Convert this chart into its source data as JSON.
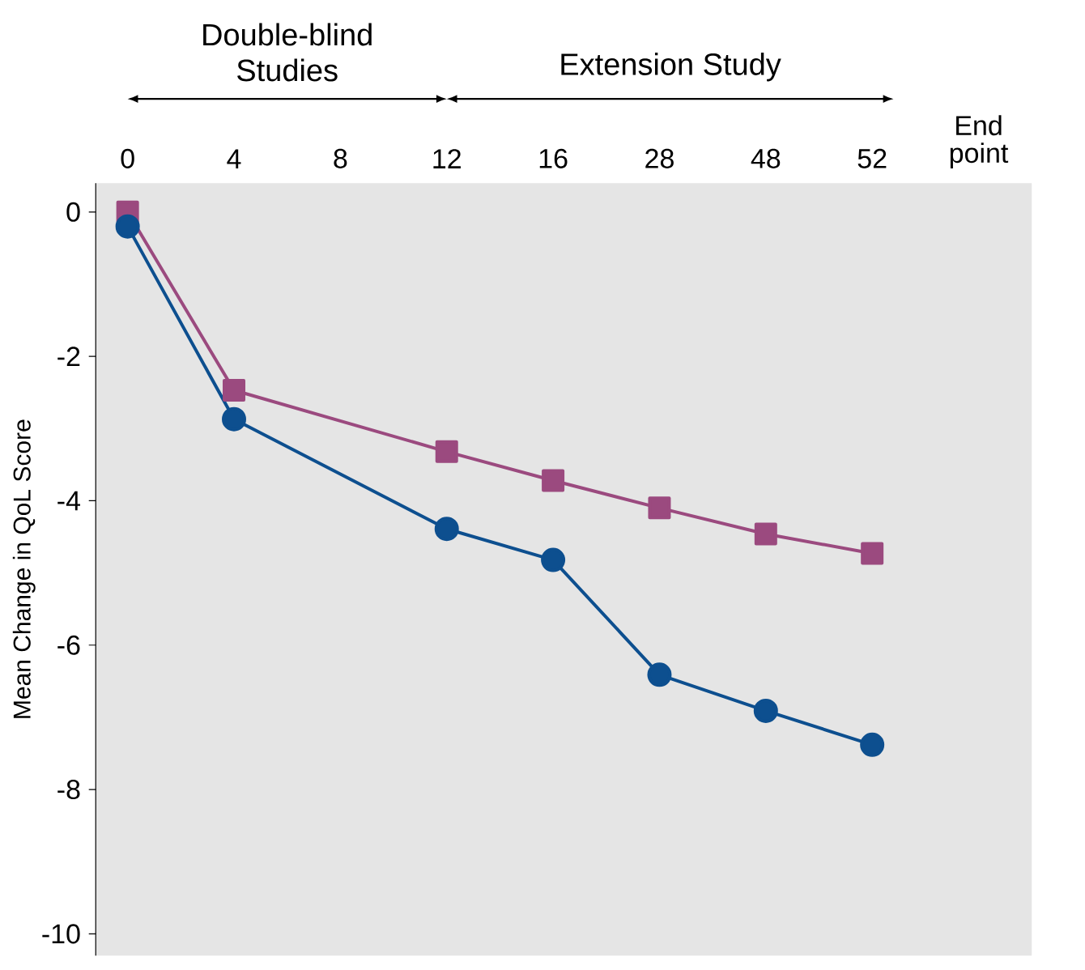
{
  "chart_data": {
    "type": "line",
    "ylabel": "Mean Change in QoL Score",
    "categories": [
      "0",
      "4",
      "8",
      "12",
      "16",
      "28",
      "48",
      "52",
      "End point"
    ],
    "ylim": [
      -10.3,
      0.4
    ],
    "yticks": [
      0,
      -2,
      -4,
      -6,
      -8,
      -10
    ],
    "annotations": [
      "Double-blind Studies",
      "Extension Study"
    ],
    "series": [
      {
        "color": "#9b4a7f",
        "marker": "square",
        "values": [
          0,
          -2.47,
          null,
          -3.32,
          -3.72,
          -4.1,
          -4.46,
          -4.73,
          null
        ]
      },
      {
        "color": "#0d4f8f",
        "marker": "circle",
        "values": [
          -0.2,
          -2.87,
          null,
          -4.39,
          -4.82,
          -6.41,
          -6.91,
          -7.38,
          null
        ]
      }
    ]
  }
}
